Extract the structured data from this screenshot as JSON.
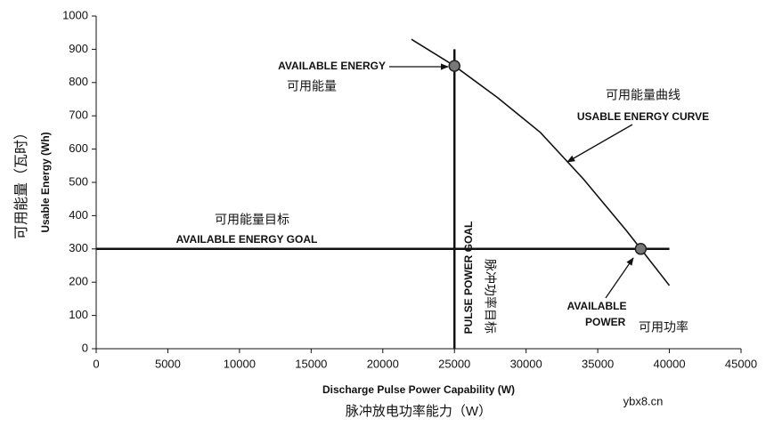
{
  "chart_data": {
    "type": "line",
    "x_label": "Discharge Pulse Power Capability (W)",
    "x_label_cn": "脉冲放电功率能力（W）",
    "y_label": "Usable Energy (Wh)",
    "y_label_cn": "可用能量（瓦时）",
    "xlim": [
      0,
      45000
    ],
    "xticks": [
      0,
      5000,
      10000,
      15000,
      20000,
      25000,
      30000,
      35000,
      40000,
      45000
    ],
    "ylim": [
      0,
      1000
    ],
    "yticks": [
      0,
      100,
      200,
      300,
      400,
      500,
      600,
      700,
      800,
      900,
      1000
    ],
    "grid": false,
    "series": [
      {
        "color": "#111111",
        "x": [
          22000,
          25000,
          28000,
          31000,
          34000,
          37000,
          38000,
          40000
        ],
        "values": [
          930,
          850,
          755,
          650,
          510,
          355,
          300,
          190
        ]
      }
    ],
    "reference_lines": [
      {
        "axis": "y",
        "value": 300,
        "extent": [
          0,
          40000
        ]
      },
      {
        "axis": "x",
        "value": 25000,
        "extent": [
          0,
          900
        ]
      }
    ],
    "points": [
      {
        "x": 25000,
        "y": 850
      },
      {
        "x": 38000,
        "y": 300
      }
    ],
    "annotations": [
      "AVAILABLE ENERGY",
      "可用能量",
      "可用能量曲线",
      "USABLE ENERGY CURVE",
      "可用能量目标",
      "AVAILABLE ENERGY GOAL",
      "PULSE POWER GOAL",
      "脉冲功率目标",
      "AVAILABLE",
      "POWER",
      "可用功率"
    ],
    "watermark": "ybx8.cn"
  }
}
